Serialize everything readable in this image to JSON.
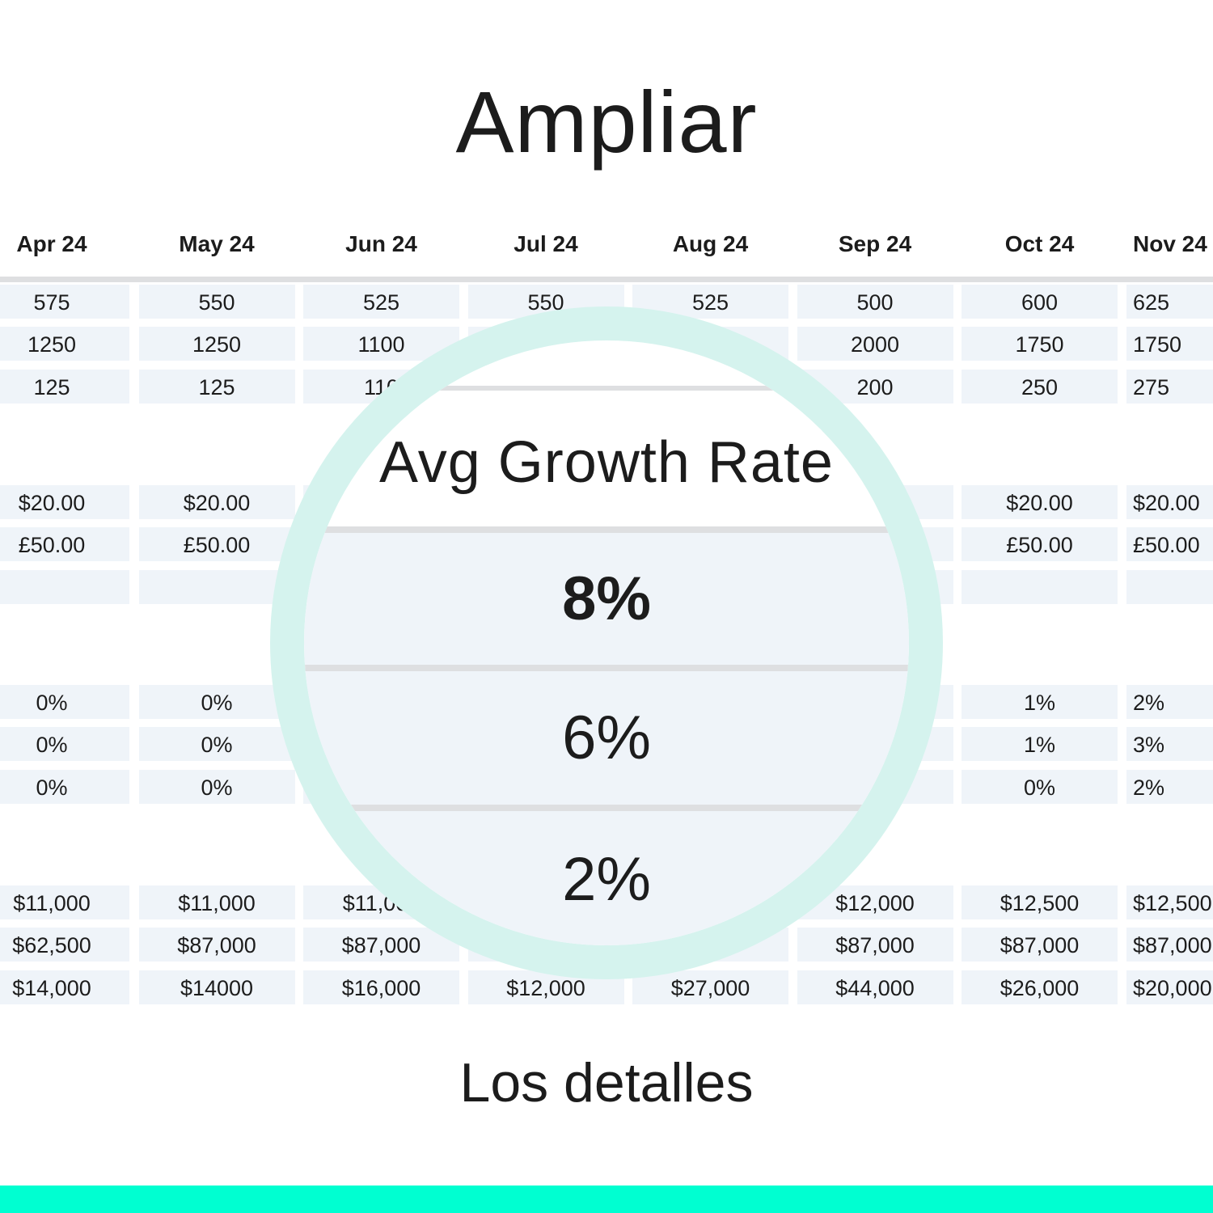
{
  "title": "Ampliar",
  "subtitle": "Los detalles",
  "colors": {
    "lens_ring": "#d5f3ee",
    "cell_bg": "#eff4f9",
    "accent_bar": "#00ffd1"
  },
  "table": {
    "columns": [
      "Apr 24",
      "May 24",
      "Jun 24",
      "Jul 24",
      "Aug 24",
      "Sep 24",
      "Oct 24",
      "Nov 24"
    ],
    "rows": [
      [
        "575",
        "550",
        "525",
        "550",
        "525",
        "500",
        "600",
        "625"
      ],
      [
        "1250",
        "1250",
        "1100",
        "",
        "",
        "2000",
        "1750",
        "1750"
      ],
      [
        "125",
        "125",
        "110",
        "",
        "",
        "200",
        "250",
        "275"
      ],
      [
        "$20.00",
        "$20.00",
        "",
        "",
        "",
        "",
        "$20.00",
        "$20.00"
      ],
      [
        "£50.00",
        "£50.00",
        "",
        "",
        "",
        "",
        "£50.00",
        "£50.00"
      ],
      [
        "",
        "",
        "",
        "",
        "",
        "",
        "",
        ""
      ],
      [
        "0%",
        "0%",
        "",
        "",
        "",
        "",
        "1%",
        "2%"
      ],
      [
        "0%",
        "0%",
        "",
        "",
        "",
        "",
        "1%",
        "3%"
      ],
      [
        "0%",
        "0%",
        "",
        "",
        "",
        "",
        "0%",
        "2%"
      ],
      [
        "$11,000",
        "$11,000",
        "$11,000",
        "",
        "",
        "$12,000",
        "$12,500",
        "$12,500"
      ],
      [
        "$62,500",
        "$87,000",
        "$87,000",
        "",
        "",
        "$87,000",
        "$87,000",
        "$87,000"
      ],
      [
        "$14,000",
        "$14000",
        "$16,000",
        "$12,000",
        "$27,000",
        "$44,000",
        "$26,000",
        "$20,000"
      ]
    ]
  },
  "magnifier": {
    "heading": "Avg Growth Rate",
    "values": [
      "8%",
      "6%",
      "2%"
    ]
  }
}
